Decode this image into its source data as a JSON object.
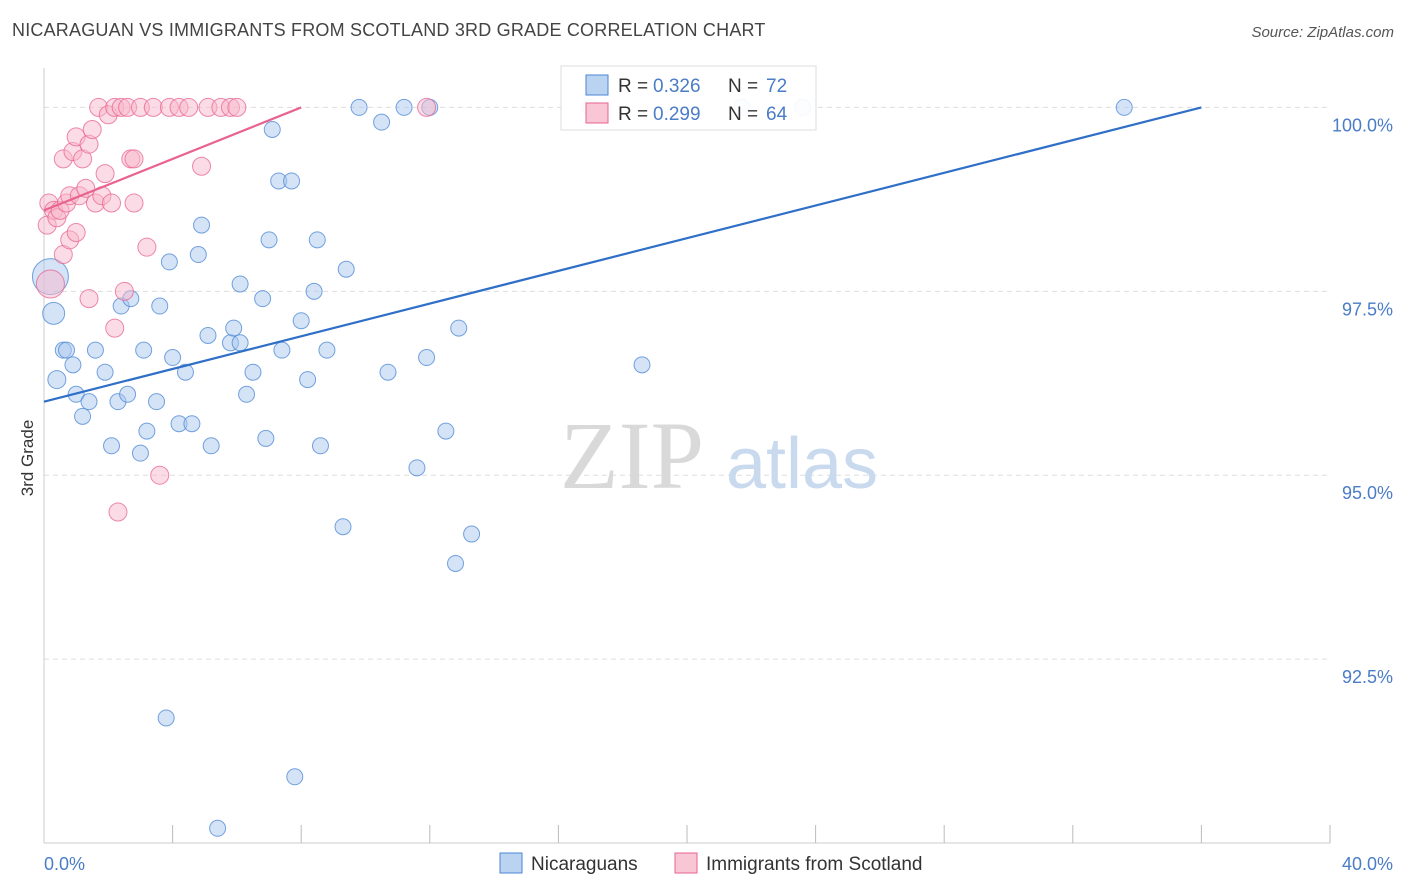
{
  "colors": {
    "blue": "#4a86d4",
    "blue_fill": "#a9c8ee",
    "pink": "#e8638f",
    "pink_fill": "#f7b8cc",
    "grid": "#dddddd",
    "axis_text": "#4a7cc7",
    "watermark": "#d8d8d8"
  },
  "watermark": {
    "zip": "ZIP",
    "atlas": "atlas"
  },
  "chart_data": {
    "type": "scatter",
    "title": "NICARAGUAN VS IMMIGRANTS FROM SCOTLAND 3RD GRADE CORRELATION CHART",
    "source": "Source: ZipAtlas.com",
    "xlabel": "",
    "ylabel": "3rd Grade",
    "xlim": [
      0,
      40
    ],
    "ylim": [
      90.0,
      100.4
    ],
    "x_tick_labels": [
      {
        "value": 0,
        "label": "0.0%"
      },
      {
        "value": 40,
        "label": "40.0%"
      }
    ],
    "y_ticks": [
      {
        "value": 100.0,
        "label": "100.0%"
      },
      {
        "value": 97.5,
        "label": "97.5%"
      },
      {
        "value": 95.0,
        "label": "95.0%"
      },
      {
        "value": 92.5,
        "label": "92.5%"
      }
    ],
    "legend_stats": [
      {
        "r_label": "R =",
        "r_value": "0.326",
        "n_label": "N =",
        "n_value": "72",
        "color": "blue"
      },
      {
        "r_label": "R =",
        "r_value": "0.299",
        "n_label": "N =",
        "n_value": "64",
        "color": "pink"
      }
    ],
    "legend": [
      {
        "label": "Nicaraguans",
        "color": "blue"
      },
      {
        "label": "Immigrants from Scotland",
        "color": "pink"
      }
    ],
    "series": [
      {
        "name": "Nicaraguans",
        "color": "blue",
        "trend": {
          "x": [
            0.0,
            36.0
          ],
          "y": [
            96.0,
            100.0
          ]
        },
        "points": [
          [
            0.2,
            97.7,
            18
          ],
          [
            0.3,
            97.2,
            11
          ],
          [
            0.4,
            96.3,
            9
          ],
          [
            0.6,
            96.7,
            8
          ],
          [
            0.7,
            96.7,
            8
          ],
          [
            0.9,
            96.5,
            8
          ],
          [
            1.0,
            96.1,
            8
          ],
          [
            1.2,
            95.8,
            8
          ],
          [
            1.4,
            96.0,
            8
          ],
          [
            1.6,
            96.7,
            8
          ],
          [
            1.9,
            96.4,
            8
          ],
          [
            2.1,
            95.4,
            8
          ],
          [
            2.3,
            96.0,
            8
          ],
          [
            2.4,
            97.3,
            8
          ],
          [
            2.6,
            96.1,
            8
          ],
          [
            2.7,
            97.4,
            8
          ],
          [
            3.0,
            95.3,
            8
          ],
          [
            3.1,
            96.7,
            8
          ],
          [
            3.2,
            95.6,
            8
          ],
          [
            3.5,
            96.0,
            8
          ],
          [
            3.6,
            97.3,
            8
          ],
          [
            3.8,
            91.7,
            8
          ],
          [
            3.9,
            97.9,
            8
          ],
          [
            4.0,
            96.6,
            8
          ],
          [
            4.2,
            95.7,
            8
          ],
          [
            4.4,
            96.4,
            8
          ],
          [
            4.6,
            95.7,
            8
          ],
          [
            4.8,
            98.0,
            8
          ],
          [
            4.9,
            98.4,
            8
          ],
          [
            5.1,
            96.9,
            8
          ],
          [
            5.2,
            95.4,
            8
          ],
          [
            5.4,
            90.2,
            8
          ],
          [
            5.8,
            96.8,
            8
          ],
          [
            5.9,
            97.0,
            8
          ],
          [
            6.1,
            96.8,
            8
          ],
          [
            6.1,
            97.6,
            8
          ],
          [
            6.3,
            96.1,
            8
          ],
          [
            6.5,
            96.4,
            8
          ],
          [
            6.8,
            97.4,
            8
          ],
          [
            6.9,
            95.5,
            8
          ],
          [
            7.0,
            98.2,
            8
          ],
          [
            7.1,
            99.7,
            8
          ],
          [
            7.3,
            99.0,
            8
          ],
          [
            7.4,
            96.7,
            8
          ],
          [
            7.7,
            99.0,
            8
          ],
          [
            7.8,
            90.9,
            8
          ],
          [
            8.0,
            97.1,
            8
          ],
          [
            8.2,
            96.3,
            8
          ],
          [
            8.4,
            97.5,
            8
          ],
          [
            8.5,
            98.2,
            8
          ],
          [
            8.6,
            95.4,
            8
          ],
          [
            8.8,
            96.7,
            8
          ],
          [
            9.3,
            94.3,
            8
          ],
          [
            9.4,
            97.8,
            8
          ],
          [
            9.8,
            100.0,
            8
          ],
          [
            10.5,
            99.8,
            8
          ],
          [
            10.7,
            96.4,
            8
          ],
          [
            11.2,
            100.0,
            8
          ],
          [
            11.6,
            95.1,
            8
          ],
          [
            11.9,
            96.6,
            8
          ],
          [
            12.0,
            100.0,
            8
          ],
          [
            12.5,
            95.6,
            8
          ],
          [
            12.8,
            93.8,
            8
          ],
          [
            12.9,
            97.0,
            8
          ],
          [
            13.3,
            94.2,
            8
          ],
          [
            17.0,
            100.0,
            8
          ],
          [
            18.6,
            96.5,
            8
          ],
          [
            21.7,
            100.0,
            8
          ],
          [
            23.6,
            100.0,
            8
          ],
          [
            33.6,
            100.0,
            8
          ]
        ]
      },
      {
        "name": "Immigrants from Scotland",
        "color": "pink",
        "trend": {
          "x": [
            0.0,
            8.0
          ],
          "y": [
            98.6,
            100.0
          ]
        },
        "points": [
          [
            0.1,
            98.4,
            9
          ],
          [
            0.15,
            98.7,
            9
          ],
          [
            0.2,
            97.6,
            14
          ],
          [
            0.3,
            98.6,
            9
          ],
          [
            0.4,
            98.5,
            9
          ],
          [
            0.5,
            98.6,
            9
          ],
          [
            0.6,
            98.0,
            9
          ],
          [
            0.6,
            99.3,
            9
          ],
          [
            0.7,
            98.7,
            9
          ],
          [
            0.8,
            98.2,
            9
          ],
          [
            0.8,
            98.8,
            9
          ],
          [
            0.9,
            99.4,
            9
          ],
          [
            1.0,
            99.6,
            9
          ],
          [
            1.0,
            98.3,
            9
          ],
          [
            1.1,
            98.8,
            9
          ],
          [
            1.2,
            99.3,
            9
          ],
          [
            1.3,
            98.9,
            9
          ],
          [
            1.4,
            99.5,
            9
          ],
          [
            1.4,
            97.4,
            9
          ],
          [
            1.5,
            99.7,
            9
          ],
          [
            1.6,
            98.7,
            9
          ],
          [
            1.7,
            100.0,
            9
          ],
          [
            1.8,
            98.8,
            9
          ],
          [
            1.9,
            99.1,
            9
          ],
          [
            2.0,
            99.9,
            9
          ],
          [
            2.1,
            98.7,
            9
          ],
          [
            2.2,
            100.0,
            9
          ],
          [
            2.2,
            97.0,
            9
          ],
          [
            2.3,
            94.5,
            9
          ],
          [
            2.4,
            100.0,
            9
          ],
          [
            2.5,
            97.5,
            9
          ],
          [
            2.6,
            100.0,
            9
          ],
          [
            2.7,
            99.3,
            9
          ],
          [
            2.8,
            98.7,
            9
          ],
          [
            2.8,
            99.3,
            9
          ],
          [
            3.0,
            100.0,
            9
          ],
          [
            3.2,
            98.1,
            9
          ],
          [
            3.4,
            100.0,
            9
          ],
          [
            3.6,
            95.0,
            9
          ],
          [
            3.9,
            100.0,
            9
          ],
          [
            4.2,
            100.0,
            9
          ],
          [
            4.5,
            100.0,
            9
          ],
          [
            4.9,
            99.2,
            9
          ],
          [
            5.1,
            100.0,
            9
          ],
          [
            5.5,
            100.0,
            9
          ],
          [
            5.8,
            100.0,
            9
          ],
          [
            6.0,
            100.0,
            9
          ],
          [
            11.9,
            100.0,
            9
          ]
        ]
      }
    ]
  }
}
